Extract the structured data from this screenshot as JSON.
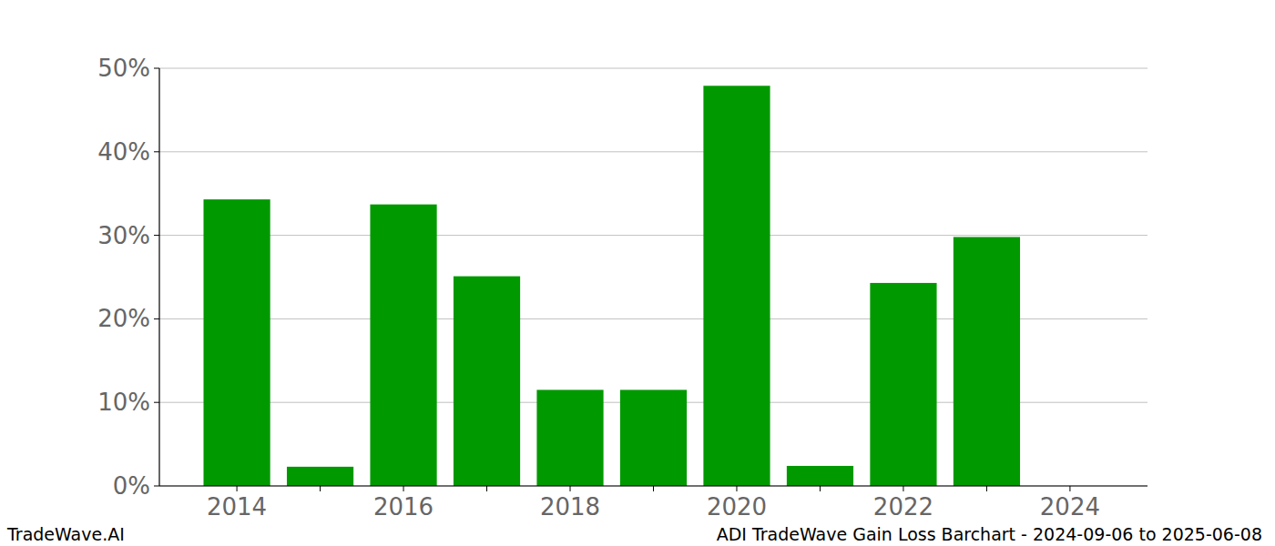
{
  "chart_data": {
    "type": "bar",
    "title": "ADI TradeWave Gain Loss Barchart - 2024-09-06 to 2025-06-08",
    "annotations": [
      "TradeWave.AI"
    ],
    "categories": [
      "2014",
      null,
      "2016",
      null,
      "2018",
      null,
      "2020",
      null,
      "2022",
      null,
      "2024"
    ],
    "values": [
      34.3,
      2.3,
      33.7,
      25.1,
      11.5,
      11.5,
      47.9,
      2.4,
      24.3,
      29.8,
      0
    ],
    "color": "#009900",
    "ylim": [
      0,
      50
    ],
    "yticks": [
      {
        "value": 0,
        "label": "0%"
      },
      {
        "value": 10,
        "label": "10%"
      },
      {
        "value": 20,
        "label": "20%"
      },
      {
        "value": 30,
        "label": "30%"
      },
      {
        "value": 40,
        "label": "40%"
      },
      {
        "value": 50,
        "label": "50%"
      }
    ],
    "grid": true
  }
}
